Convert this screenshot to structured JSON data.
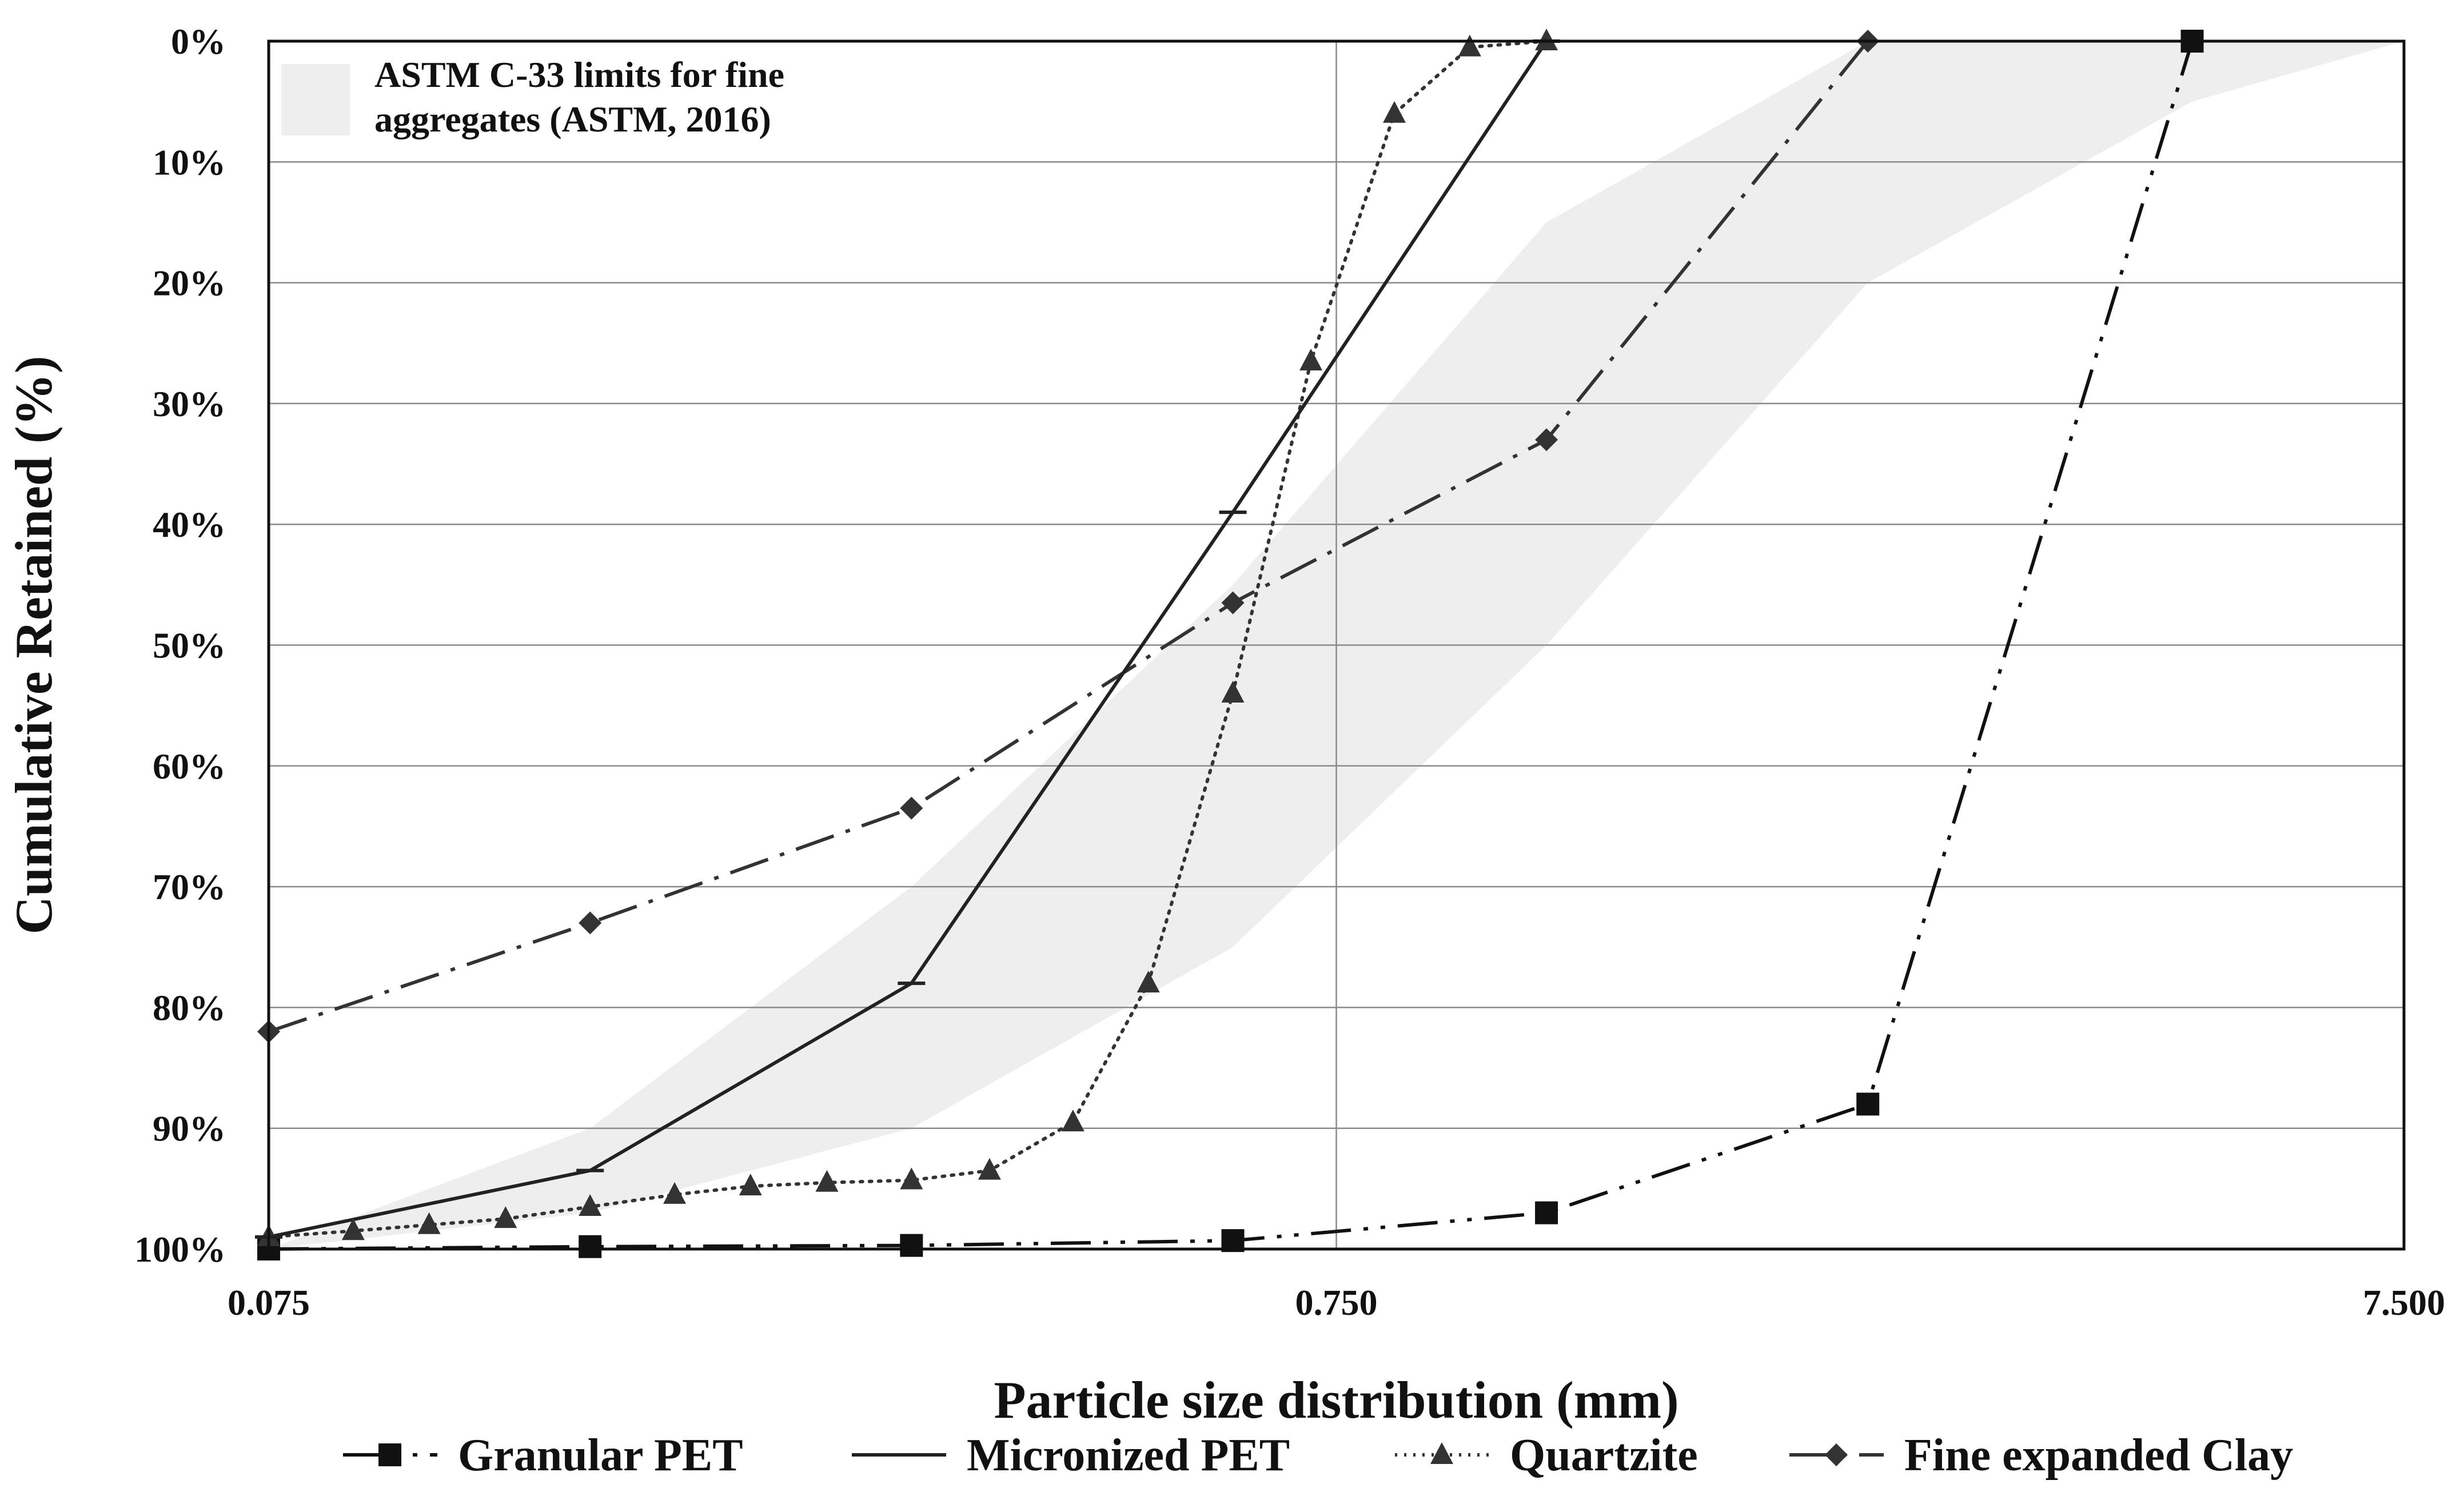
{
  "chart_data": {
    "type": "line",
    "title": "",
    "xlabel": "Particle size distribution (mm)",
    "ylabel": "Cumulative Retained (%)",
    "x_scale": "log",
    "xlim": [
      0.075,
      7.5
    ],
    "ylim": [
      0,
      100
    ],
    "y_inverted": true,
    "x_ticks": [
      0.075,
      0.75,
      7.5
    ],
    "x_tick_labels": [
      "0.075",
      "0.750",
      "7.500"
    ],
    "y_ticks": [
      0,
      10,
      20,
      30,
      40,
      50,
      60,
      70,
      80,
      90,
      100
    ],
    "y_tick_labels": [
      "0%",
      "10%",
      "20%",
      "30%",
      "40%",
      "50%",
      "60%",
      "70%",
      "80%",
      "90%",
      "100%"
    ],
    "grid": true,
    "legend_position": "bottom",
    "band": {
      "name": "ASTM C-33 limits for fine aggregates (ASTM, 2016)",
      "label_lines": [
        "ASTM C-33 limits for fine",
        "aggregates (ASTM, 2016)"
      ],
      "color": "#eeeeee",
      "lower_boundary": [
        [
          0.075,
          100
        ],
        [
          0.15,
          97
        ],
        [
          0.3,
          90
        ],
        [
          0.6,
          75
        ],
        [
          1.18,
          50
        ],
        [
          2.36,
          20
        ],
        [
          4.75,
          5
        ],
        [
          7.5,
          0
        ]
      ],
      "upper_boundary": [
        [
          0.075,
          100
        ],
        [
          0.15,
          90
        ],
        [
          0.3,
          70
        ],
        [
          0.6,
          45
        ],
        [
          1.18,
          15
        ],
        [
          2.36,
          0
        ],
        [
          7.5,
          0
        ]
      ]
    },
    "series": [
      {
        "name": "Granular PET",
        "marker": "square",
        "dash": "long-dash-dot-dot",
        "color": "#111111",
        "x": [
          0.075,
          0.15,
          0.3,
          0.6,
          1.18,
          2.36,
          4.75
        ],
        "y": [
          100,
          99.8,
          99.7,
          99.3,
          97,
          88,
          0
        ]
      },
      {
        "name": "Micronized PET",
        "marker": "dash",
        "dash": "solid",
        "color": "#222222",
        "x": [
          0.075,
          0.15,
          0.3,
          0.6,
          1.18
        ],
        "y": [
          99,
          93.5,
          78,
          39,
          0
        ]
      },
      {
        "name": "Quartzite",
        "marker": "triangle",
        "dash": "dotted",
        "color": "#333333",
        "x": [
          0.075,
          0.09,
          0.106,
          0.125,
          0.15,
          0.18,
          0.212,
          0.25,
          0.3,
          0.355,
          0.425,
          0.5,
          0.6,
          0.71,
          0.85,
          1.0,
          1.18
        ],
        "y": [
          99,
          98.5,
          98,
          97.5,
          96.5,
          95.5,
          94.8,
          94.5,
          94.3,
          93.5,
          89.5,
          78,
          54,
          26.5,
          6,
          0.5,
          0
        ]
      },
      {
        "name": "Fine expanded Clay",
        "marker": "diamond",
        "dash": "long-dash-dot",
        "color": "#333333",
        "x": [
          0.075,
          0.15,
          0.3,
          0.6,
          1.18,
          2.36
        ],
        "y": [
          82,
          73,
          63.5,
          46.5,
          33,
          0
        ]
      }
    ]
  }
}
